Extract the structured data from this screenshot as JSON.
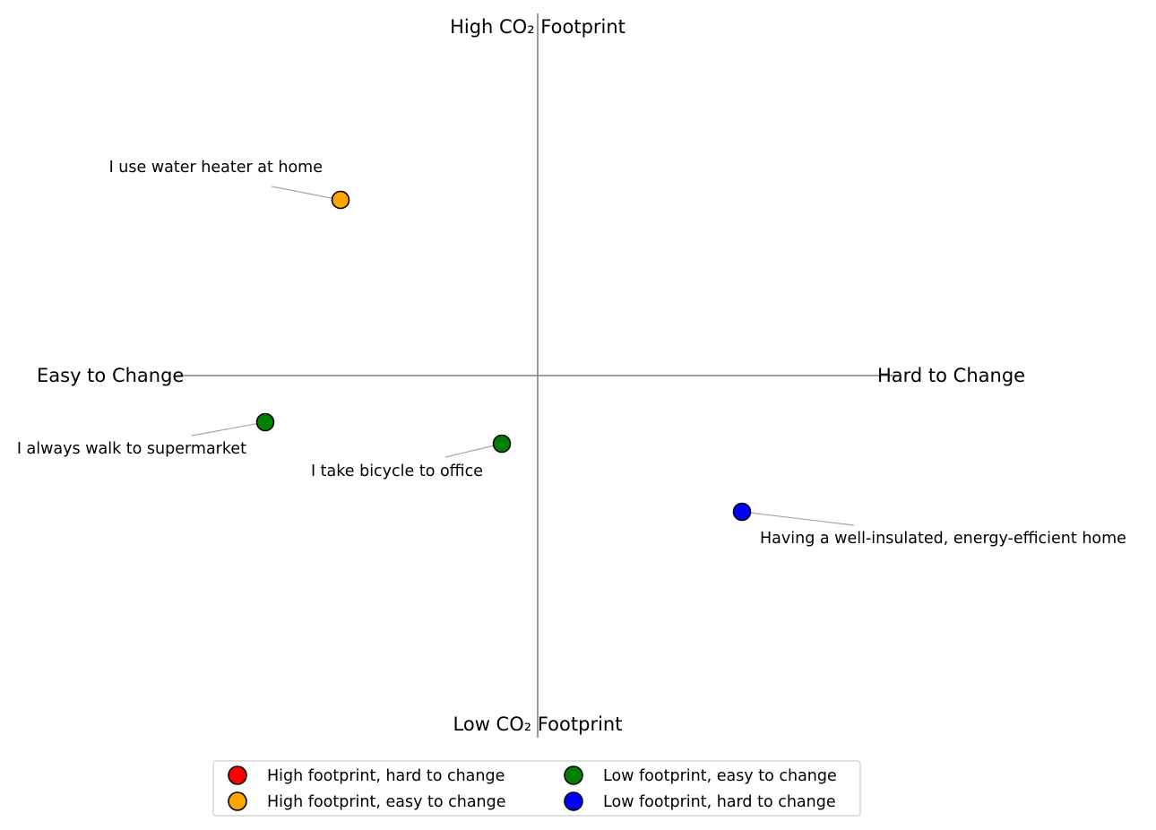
{
  "chart_data": {
    "type": "scatter",
    "axis_labels": {
      "top": "High CO₂ Footprint",
      "bottom": "Low CO₂ Footprint",
      "left": "Easy to Change",
      "right": "Hard to Change"
    },
    "xlim": [
      -1,
      1
    ],
    "ylim": [
      -1,
      1
    ],
    "grid": false,
    "legend_position": "bottom-center",
    "categories": [
      {
        "key": "high_hard",
        "label": "High footprint, hard to change",
        "color": "#ff0000"
      },
      {
        "key": "high_easy",
        "label": "High footprint, easy to change",
        "color": "#ffa500"
      },
      {
        "key": "low_easy",
        "label": "Low footprint, easy to change",
        "color": "#008000"
      },
      {
        "key": "low_hard",
        "label": "Low footprint, hard to change",
        "color": "#0000ff"
      }
    ],
    "points": [
      {
        "label": "I use water heater at home",
        "x": -0.55,
        "y": 0.49,
        "category": "high_easy"
      },
      {
        "label": "I always walk to supermarket",
        "x": -0.76,
        "y": -0.13,
        "category": "low_easy"
      },
      {
        "label": "I take bicycle to office",
        "x": -0.1,
        "y": -0.19,
        "category": "low_easy"
      },
      {
        "label": "Having a well-insulated, energy-efficient home",
        "x": 0.57,
        "y": -0.38,
        "category": "low_hard"
      }
    ]
  }
}
